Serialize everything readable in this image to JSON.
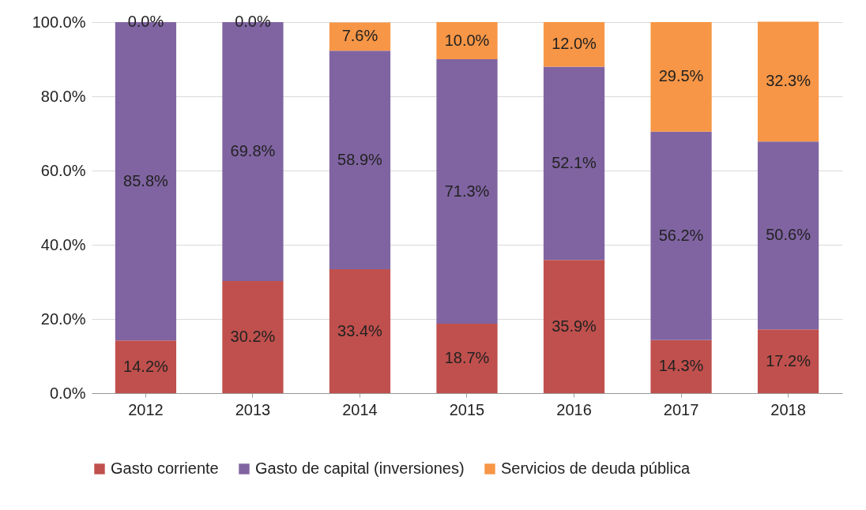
{
  "chart_data": {
    "type": "bar",
    "stacked": true,
    "categories": [
      "2012",
      "2013",
      "2014",
      "2015",
      "2016",
      "2017",
      "2018"
    ],
    "series": [
      {
        "name": "Gasto corriente",
        "color": "#c0504d",
        "values": [
          14.2,
          30.2,
          33.4,
          18.7,
          35.9,
          14.3,
          17.2
        ],
        "value_labels": [
          "14.2%",
          "30.2%",
          "33.4%",
          "18.7%",
          "35.9%",
          "14.3%",
          "17.2%"
        ]
      },
      {
        "name": "Gasto de capital (inversiones)",
        "color": "#8064a2",
        "values": [
          85.8,
          69.8,
          58.9,
          71.3,
          52.1,
          56.2,
          50.6
        ],
        "value_labels": [
          "85.8%",
          "69.8%",
          "58.9%",
          "71.3%",
          "52.1%",
          "56.2%",
          "50.6%"
        ]
      },
      {
        "name": "Servicios de deuda pública",
        "color": "#f79646",
        "values": [
          0.0,
          0.0,
          7.6,
          10.0,
          12.0,
          29.5,
          32.3
        ],
        "value_labels": [
          "0.0%",
          "0.0%",
          "7.6%",
          "10.0%",
          "12.0%",
          "29.5%",
          "32.3%"
        ]
      }
    ],
    "ylim": [
      0,
      100
    ],
    "yticks": [
      {
        "value": 0,
        "label": "0.0%"
      },
      {
        "value": 20,
        "label": "20.0%"
      },
      {
        "value": 40,
        "label": "40.0%"
      },
      {
        "value": 60,
        "label": "60.0%"
      },
      {
        "value": 80,
        "label": "80.0%"
      },
      {
        "value": 100,
        "label": "100.0%"
      }
    ],
    "grid": "y",
    "legend": "bottom"
  }
}
